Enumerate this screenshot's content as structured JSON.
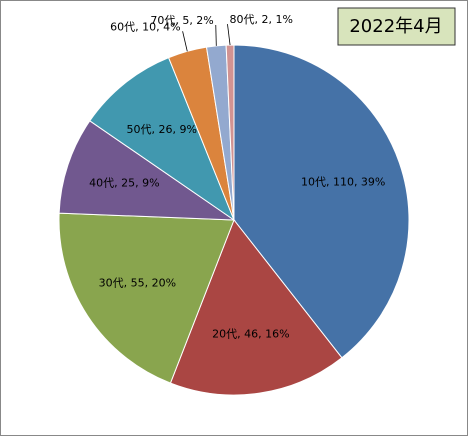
{
  "chart_data": {
    "type": "pie",
    "title": "2022年4月",
    "values": [
      110,
      46,
      55,
      25,
      26,
      10,
      5,
      2
    ],
    "value_labels": [
      "10代, 110, 39%",
      "20代, 46, 16%",
      "30代, 55, 20%",
      "40代, 25, 9%",
      "50代, 26, 9%",
      "60代, 10, 4%",
      "70代, 5, 2%",
      "80代, 2, 1%"
    ],
    "colors": [
      "#4572a7",
      "#aa4643",
      "#89a54e",
      "#71588f",
      "#4198af",
      "#db843d",
      "#93a9cf",
      "#d19392"
    ]
  }
}
